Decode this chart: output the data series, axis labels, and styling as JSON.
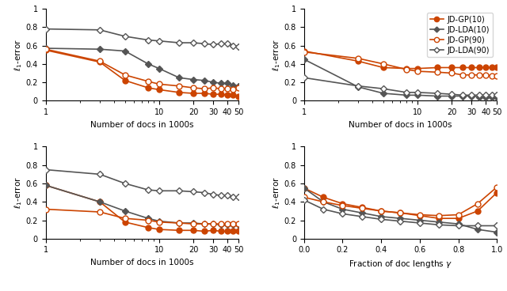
{
  "orange_color": "#cc4400",
  "gray_color": "#555555",
  "x_docs": [
    1,
    3,
    5,
    8,
    10,
    15,
    20,
    25,
    30,
    35,
    40,
    45,
    50
  ],
  "x_gamma": [
    0.0,
    0.1,
    0.2,
    0.3,
    0.4,
    0.5,
    0.6,
    0.7,
    0.8,
    0.9,
    1.0
  ],
  "tl_gp10": [
    0.55,
    0.42,
    0.22,
    0.14,
    0.12,
    0.09,
    0.08,
    0.08,
    0.07,
    0.07,
    0.06,
    0.06,
    0.05
  ],
  "tl_lda10": [
    0.57,
    0.56,
    0.54,
    0.4,
    0.35,
    0.25,
    0.23,
    0.22,
    0.2,
    0.19,
    0.19,
    0.17,
    0.16
  ],
  "tl_gp90": [
    0.56,
    0.43,
    0.28,
    0.21,
    0.18,
    0.16,
    0.14,
    0.13,
    0.14,
    0.13,
    0.13,
    0.12,
    0.14
  ],
  "tl_lda90": [
    0.78,
    0.77,
    0.7,
    0.66,
    0.65,
    0.63,
    0.63,
    0.62,
    0.61,
    0.62,
    0.62,
    0.6,
    0.59
  ],
  "tr_gp10": [
    0.54,
    0.43,
    0.36,
    0.35,
    0.35,
    0.36,
    0.36,
    0.36,
    0.36,
    0.36,
    0.36,
    0.36,
    0.36
  ],
  "tr_lda10": [
    0.45,
    0.15,
    0.08,
    0.06,
    0.06,
    0.05,
    0.05,
    0.05,
    0.05,
    0.04,
    0.04,
    0.04,
    0.04
  ],
  "tr_gp90": [
    0.53,
    0.46,
    0.4,
    0.34,
    0.32,
    0.31,
    0.3,
    0.28,
    0.28,
    0.28,
    0.28,
    0.27,
    0.27
  ],
  "tr_lda90": [
    0.25,
    0.16,
    0.13,
    0.09,
    0.09,
    0.08,
    0.07,
    0.06,
    0.06,
    0.06,
    0.06,
    0.06,
    0.06
  ],
  "bl_gp10": [
    0.58,
    0.4,
    0.18,
    0.12,
    0.1,
    0.09,
    0.09,
    0.08,
    0.09,
    0.08,
    0.08,
    0.08,
    0.08
  ],
  "bl_lda10": [
    0.58,
    0.4,
    0.3,
    0.22,
    0.19,
    0.17,
    0.17,
    0.16,
    0.16,
    0.15,
    0.15,
    0.15,
    0.15
  ],
  "bl_gp90": [
    0.32,
    0.29,
    0.22,
    0.2,
    0.18,
    0.17,
    0.16,
    0.16,
    0.16,
    0.16,
    0.16,
    0.16,
    0.16
  ],
  "bl_lda90": [
    0.75,
    0.7,
    0.6,
    0.53,
    0.52,
    0.52,
    0.51,
    0.5,
    0.48,
    0.47,
    0.47,
    0.45,
    0.45
  ],
  "br_gp10": [
    0.55,
    0.45,
    0.38,
    0.34,
    0.3,
    0.28,
    0.25,
    0.22,
    0.22,
    0.3,
    0.5
  ],
  "br_lda10": [
    0.55,
    0.4,
    0.32,
    0.28,
    0.24,
    0.22,
    0.2,
    0.18,
    0.16,
    0.1,
    0.07
  ],
  "br_gp90": [
    0.45,
    0.4,
    0.36,
    0.33,
    0.3,
    0.28,
    0.26,
    0.25,
    0.26,
    0.38,
    0.56
  ],
  "br_lda90": [
    0.42,
    0.32,
    0.27,
    0.24,
    0.21,
    0.19,
    0.17,
    0.15,
    0.14,
    0.14,
    0.14
  ],
  "ylabel": "$\\ell_1$-error",
  "xlabel_docs": "Number of docs in 1000s",
  "xlabel_gamma": "Fraction of doc lengths $\\gamma$",
  "legend_labels": [
    "JD-GP(10)",
    "JD-LDA(10)",
    "JD-GP(90)",
    "JD-LDA(90)"
  ],
  "ylim": [
    0,
    1
  ],
  "yticks": [
    0,
    0.2,
    0.4,
    0.6,
    0.8,
    1
  ],
  "xticks_docs": [
    1,
    10,
    20,
    30,
    40,
    50
  ],
  "xticks_gamma": [
    0,
    0.2,
    0.4,
    0.6,
    0.8,
    1.0
  ]
}
